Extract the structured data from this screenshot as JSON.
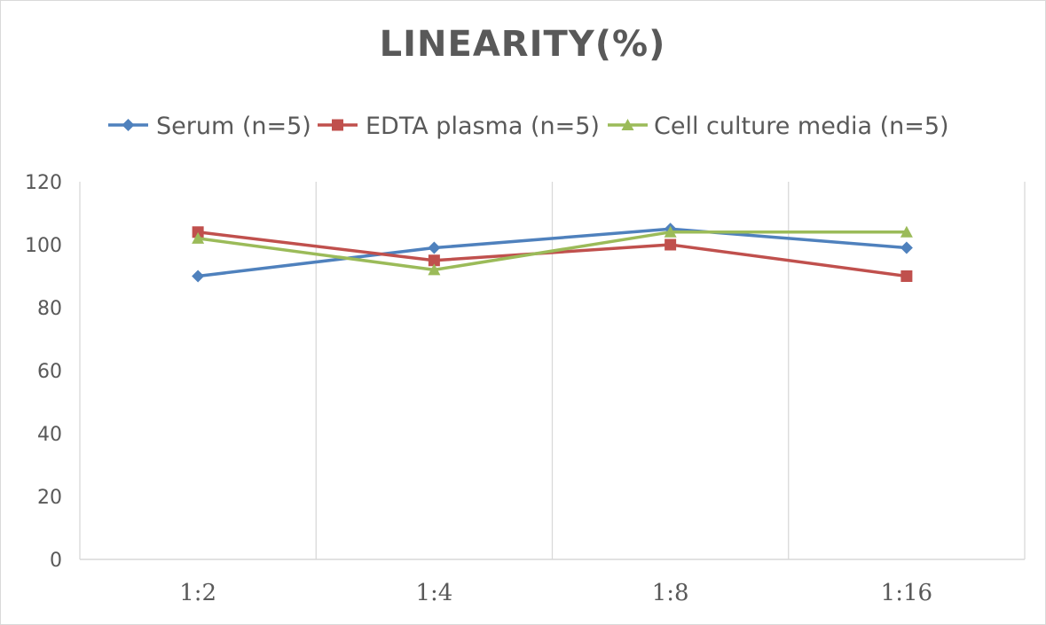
{
  "chart_data": {
    "type": "line",
    "title": "LINEARITY(%)",
    "categories": [
      "1:2",
      "1:4",
      "1:8",
      "1:16"
    ],
    "ylim": [
      0,
      120
    ],
    "yticks": [
      0,
      20,
      40,
      60,
      80,
      100,
      120
    ],
    "grid": "vertical",
    "legend_position": "top",
    "series": [
      {
        "name": "Serum (n=5)",
        "color": "#4f81bd",
        "marker": "diamond",
        "values": [
          90,
          99,
          105,
          99
        ]
      },
      {
        "name": "EDTA plasma (n=5)",
        "color": "#c0504d",
        "marker": "square",
        "values": [
          104,
          95,
          100,
          90
        ]
      },
      {
        "name": "Cell culture media (n=5)",
        "color": "#9bbb59",
        "marker": "triangle",
        "values": [
          102,
          92,
          104,
          104
        ]
      }
    ]
  }
}
